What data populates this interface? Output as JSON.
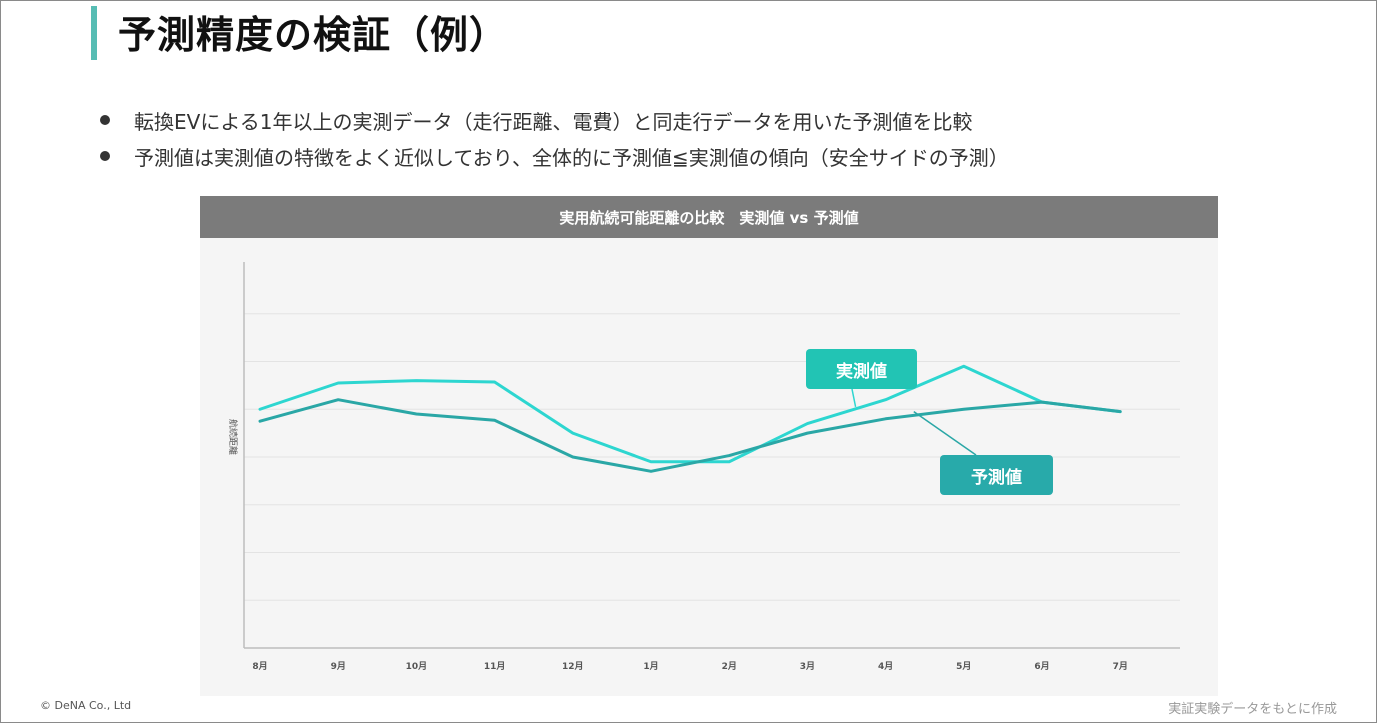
{
  "slide": {
    "title": "予測精度の検証（例）",
    "bullets": [
      "転換EVによる1年以上の実測データ（走行距離、電費）と同走行データを用いた予測値を比較",
      "予測値は実測値の特徴をよく近似しており、全体的に予測値≦実測値の傾向（安全サイドの予測）"
    ],
    "copyright": "© DeNA Co., Ltd",
    "source_note": "実証実験データをもとに作成"
  },
  "colors": {
    "accent": "#57bdb4",
    "actual": "#2dd6d0",
    "predicted": "#2aa7a6",
    "header": "#7b7b7b"
  },
  "chart_data": {
    "type": "line",
    "title": "実用航続可能距離の比較　実測値 vs 予測値",
    "xlabel": "",
    "ylabel": "航続距離",
    "categories": [
      "8月",
      "9月",
      "10月",
      "11月",
      "12月",
      "1月",
      "2月",
      "3月",
      "4月",
      "5月",
      "6月",
      "7月"
    ],
    "ylim": [
      0,
      8
    ],
    "yticks_labeled": false,
    "grid": true,
    "series": [
      {
        "name": "実測値",
        "values": [
          5.0,
          5.55,
          5.6,
          5.57,
          4.5,
          3.9,
          3.9,
          4.7,
          5.2,
          5.9,
          5.15,
          4.95
        ]
      },
      {
        "name": "予測値",
        "values": [
          4.75,
          5.2,
          4.9,
          4.77,
          4.0,
          3.7,
          4.03,
          4.5,
          4.8,
          5.0,
          5.15,
          4.95
        ]
      }
    ],
    "annotations": [
      "実測値",
      "予測値"
    ]
  }
}
